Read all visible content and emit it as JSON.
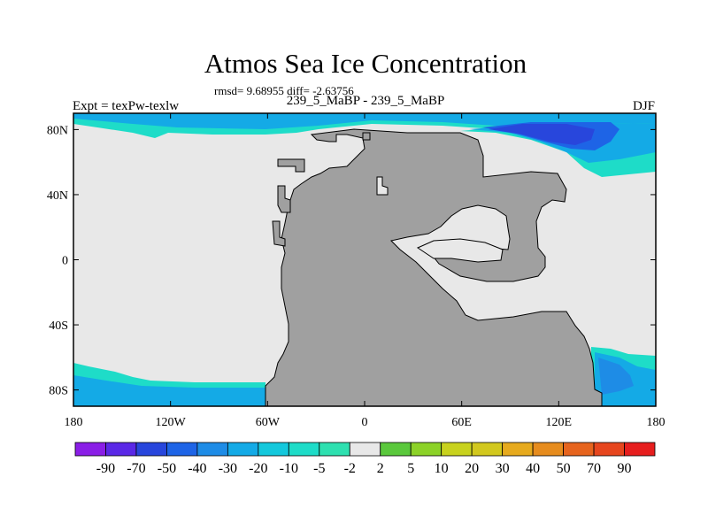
{
  "title": "Atmos Sea Ice Concentration",
  "stats": "rmsd= 9.68955 diff= -2.63756",
  "subtitle": "239_5_MaBP - 239_5_MaBP",
  "expt_label": "Expt = texPw-texlw",
  "season": "DJF",
  "map": {
    "projection": "cylindrical-equidistant",
    "lon_range": [
      -180,
      180
    ],
    "lat_range": [
      -90,
      90
    ],
    "x_ticks": [
      {
        "value": -180,
        "label": "180"
      },
      {
        "value": -120,
        "label": "120W"
      },
      {
        "value": -60,
        "label": "60W"
      },
      {
        "value": 0,
        "label": "0"
      },
      {
        "value": 60,
        "label": "60E"
      },
      {
        "value": 120,
        "label": "120E"
      },
      {
        "value": 180,
        "label": "180"
      }
    ],
    "y_ticks": [
      {
        "value": 80,
        "label": "80N"
      },
      {
        "value": 40,
        "label": "40N"
      },
      {
        "value": 0,
        "label": "0"
      },
      {
        "value": -40,
        "label": "40S"
      },
      {
        "value": -80,
        "label": "80S"
      }
    ],
    "colors": {
      "ocean_near_zero": "#e8e8e8",
      "land": "#a0a0a0",
      "coast": "#000000"
    }
  },
  "colorbar": {
    "labels": [
      "-90",
      "-70",
      "-50",
      "-40",
      "-30",
      "-20",
      "-10",
      "-5",
      "-2",
      "2",
      "5",
      "10",
      "20",
      "30",
      "40",
      "50",
      "70",
      "90"
    ],
    "colors": [
      "#8a1ee6",
      "#5a28e6",
      "#2846dc",
      "#1e64e6",
      "#1e8ce6",
      "#14aae6",
      "#14c8dc",
      "#1edcc8",
      "#2ee0b0",
      "#e8e8e8",
      "#5ac83c",
      "#8cd228",
      "#c8d21e",
      "#d2c81e",
      "#e6aa1e",
      "#e68c1e",
      "#e6641e",
      "#e6461e",
      "#e61e1e"
    ]
  }
}
